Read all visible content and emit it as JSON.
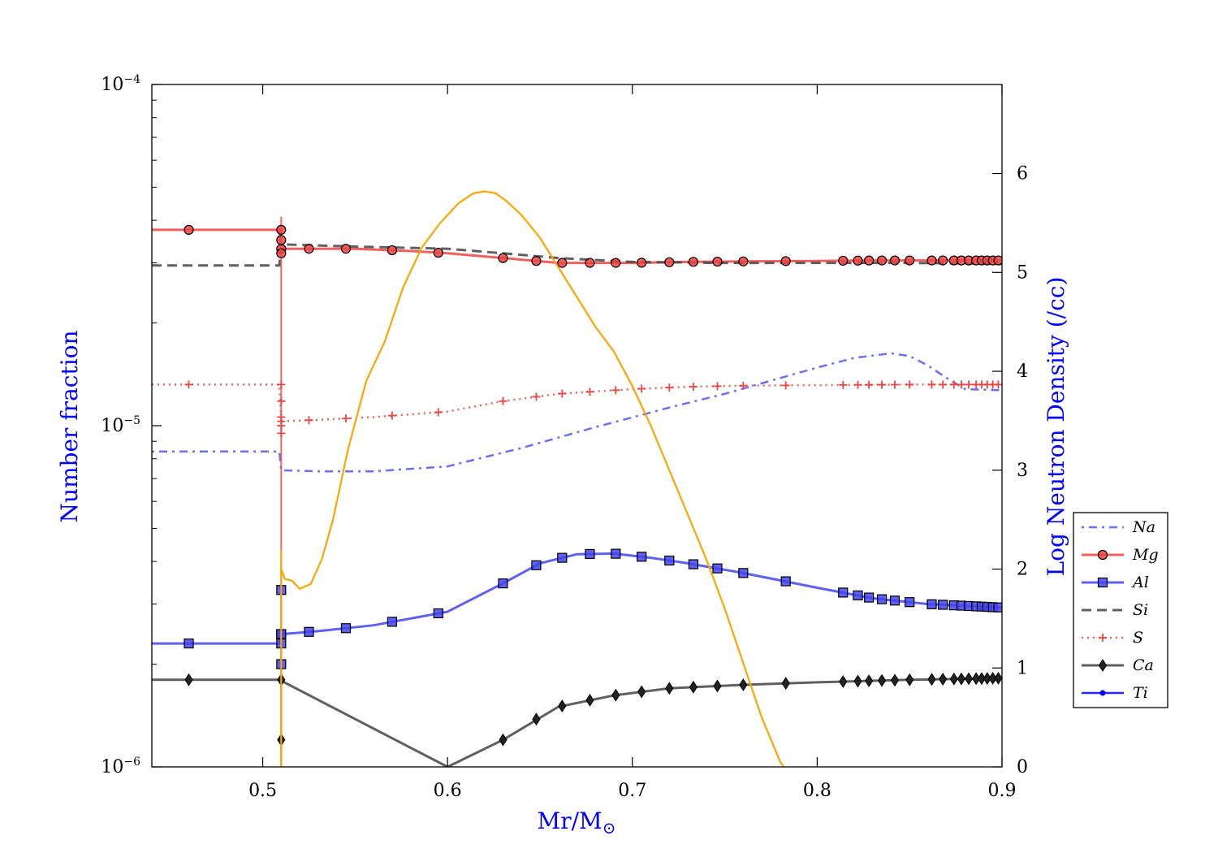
{
  "chart_data": {
    "type": "line",
    "title": "",
    "xlabel": "Mr/M",
    "xlabel_sub": "⊙",
    "ylabel_left": "Number fraction",
    "ylabel_right": "Log Neutron Density (/cc)",
    "xlim": [
      0.44,
      0.9
    ],
    "ylim_left": [
      1e-06,
      0.0001
    ],
    "yscale_left": "log",
    "ylim_right": [
      0,
      6.9
    ],
    "x_ticks": [
      0.5,
      0.6,
      0.7,
      0.8,
      0.9
    ],
    "x_tick_labels": [
      "0.5",
      "0.6",
      "0.7",
      "0.8",
      "0.9"
    ],
    "y_left_ticks": [
      1e-06,
      1e-05,
      0.0001
    ],
    "y_left_tick_base": "10",
    "y_left_tick_exps": [
      "−6",
      "−5",
      "−4"
    ],
    "y_right_ticks": [
      0,
      1,
      2,
      3,
      4,
      5,
      6
    ],
    "y_right_tick_labels": [
      "0",
      "1",
      "2",
      "3",
      "4",
      "5",
      "6"
    ],
    "legend_position": "lower-right, outside",
    "colors": {
      "na": "#5555ee",
      "mg": "#ee4444",
      "al": "#4444ee",
      "si": "#444444",
      "s": "#ee4444",
      "ca": "#444444",
      "ti": "#0000ee",
      "neutron": "#ffa500"
    },
    "series": [
      {
        "name": "Na",
        "style": "dash-dot",
        "x": [
          0.44,
          0.509,
          0.51,
          0.53,
          0.56,
          0.6,
          0.64,
          0.68,
          0.72,
          0.75,
          0.78,
          0.8,
          0.82,
          0.84,
          0.85,
          0.86,
          0.87,
          0.88,
          0.9
        ],
        "y": [
          8.4e-06,
          8.4e-06,
          7.4e-06,
          7.35e-06,
          7.35e-06,
          7.6e-06,
          8.6e-06,
          9.9e-06,
          1.13e-05,
          1.24e-05,
          1.38e-05,
          1.48e-05,
          1.58e-05,
          1.63e-05,
          1.6e-05,
          1.5e-05,
          1.38e-05,
          1.28e-05,
          1.27e-05
        ]
      },
      {
        "name": "Mg",
        "style": "solid-circle",
        "x": [
          0.44,
          0.509,
          0.51,
          0.52,
          0.55,
          0.58,
          0.6,
          0.63,
          0.66,
          0.7,
          0.73,
          0.76,
          0.8,
          0.83,
          0.86,
          0.9
        ],
        "y": [
          3.75e-05,
          3.75e-05,
          3.3e-05,
          3.3e-05,
          3.3e-05,
          3.25e-05,
          3.2e-05,
          3.1e-05,
          3e-05,
          3e-05,
          3.02e-05,
          3.03e-05,
          3.04e-05,
          3.05e-05,
          3.05e-05,
          3.05e-05
        ]
      },
      {
        "name": "Al",
        "style": "solid-square",
        "x": [
          0.44,
          0.509,
          0.51,
          0.53,
          0.56,
          0.6,
          0.63,
          0.65,
          0.67,
          0.69,
          0.71,
          0.73,
          0.76,
          0.8,
          0.83,
          0.86,
          0.9
        ],
        "y": [
          2.3e-06,
          2.3e-06,
          2.45e-06,
          2.5e-06,
          2.6e-06,
          2.85e-06,
          3.45e-06,
          3.95e-06,
          4.2e-06,
          4.22e-06,
          4.1e-06,
          3.95e-06,
          3.7e-06,
          3.35e-06,
          3.12e-06,
          3e-06,
          2.93e-06
        ]
      },
      {
        "name": "Si",
        "style": "dashed",
        "x": [
          0.44,
          0.509,
          0.51,
          0.55,
          0.6,
          0.63,
          0.66,
          0.7,
          0.75,
          0.8,
          0.85,
          0.9
        ],
        "y": [
          2.95e-05,
          2.95e-05,
          3.4e-05,
          3.35e-05,
          3.3e-05,
          3.2e-05,
          3.1e-05,
          3.02e-05,
          3e-05,
          3e-05,
          3e-05,
          2.98e-05
        ]
      },
      {
        "name": "S",
        "style": "dotted-plus",
        "x": [
          0.44,
          0.509,
          0.51,
          0.53,
          0.56,
          0.6,
          0.63,
          0.66,
          0.7,
          0.73,
          0.76,
          0.8,
          0.85,
          0.9
        ],
        "y": [
          1.32e-05,
          1.32e-05,
          1.03e-05,
          1.04e-05,
          1.06e-05,
          1.1e-05,
          1.18e-05,
          1.24e-05,
          1.28e-05,
          1.3e-05,
          1.31e-05,
          1.315e-05,
          1.32e-05,
          1.32e-05
        ]
      },
      {
        "name": "Ca",
        "style": "solid-diamond",
        "x": [
          0.44,
          0.509,
          0.6,
          0.63,
          0.66,
          0.69,
          0.72,
          0.76,
          0.8,
          0.85,
          0.9
        ],
        "y": [
          1.8e-06,
          1.8e-06,
          1e-06,
          1.2e-06,
          1.5e-06,
          1.62e-06,
          1.7e-06,
          1.74e-06,
          1.77e-06,
          1.8e-06,
          1.82e-06
        ]
      },
      {
        "name": "Ti",
        "style": "solid-dot",
        "x": [],
        "y": []
      }
    ],
    "neutron_density": {
      "name": "Log neutron density",
      "axis": "right",
      "x": [
        0.51,
        0.512,
        0.516,
        0.52,
        0.526,
        0.532,
        0.538,
        0.546,
        0.556,
        0.566,
        0.576,
        0.586,
        0.596,
        0.606,
        0.614,
        0.62,
        0.626,
        0.632,
        0.64,
        0.65,
        0.66,
        0.67,
        0.68,
        0.69,
        0.7,
        0.71,
        0.72,
        0.73,
        0.74,
        0.75,
        0.76,
        0.77,
        0.78,
        0.782
      ],
      "y": [
        2.0,
        1.9,
        1.88,
        1.8,
        1.85,
        2.1,
        2.5,
        3.2,
        3.9,
        4.3,
        4.85,
        5.25,
        5.5,
        5.7,
        5.8,
        5.82,
        5.8,
        5.72,
        5.58,
        5.35,
        5.05,
        4.75,
        4.45,
        4.2,
        3.85,
        3.45,
        3.0,
        2.55,
        2.1,
        1.6,
        1.05,
        0.5,
        0.05,
        0.0
      ]
    },
    "spike_x": 0.51
  }
}
